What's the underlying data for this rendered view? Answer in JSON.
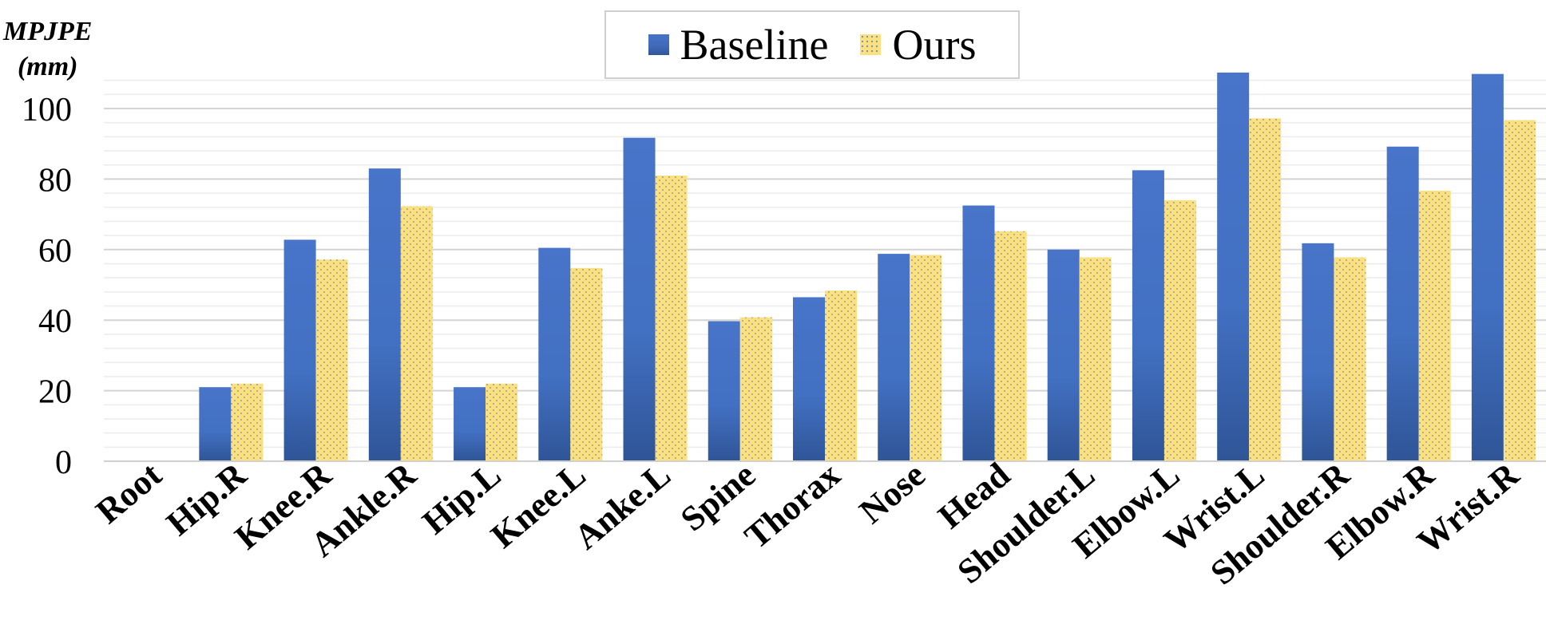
{
  "chart_data": {
    "type": "bar",
    "title": "",
    "xlabel": "",
    "ylabel": "MPJPE (mm)",
    "ylabel_lines": [
      "MPJPE",
      "(mm)"
    ],
    "ylim": [
      0,
      108
    ],
    "yticks": [
      0,
      20,
      40,
      60,
      80,
      100
    ],
    "minor_grid_step": 4,
    "grid": true,
    "legend_position": "top-center",
    "categories": [
      "Root",
      "Hip.R",
      "Knee.R",
      "Ankle.R",
      "Hip.L",
      "Knee.L",
      "Anke.L",
      "Spine",
      "Thorax",
      "Nose",
      "Head",
      "Shoulder.L",
      "Elbow.L",
      "Wrist.L",
      "Shoulder.R",
      "Elbow.R",
      "Wrist.R"
    ],
    "series": [
      {
        "name": "Baseline",
        "color": "#4472c4",
        "values": [
          0,
          21,
          62.8,
          83,
          21,
          60.5,
          91.7,
          39.7,
          46.5,
          58.8,
          72.5,
          60,
          82.5,
          110.2,
          61.8,
          89.2,
          109.8
        ]
      },
      {
        "name": "Ours",
        "color": "#ffd966",
        "values": [
          0,
          22,
          57.2,
          72.3,
          22,
          54.8,
          81,
          40.8,
          48.4,
          58.5,
          65.2,
          57.8,
          74,
          97.2,
          57.8,
          76.7,
          96.7
        ]
      }
    ]
  }
}
